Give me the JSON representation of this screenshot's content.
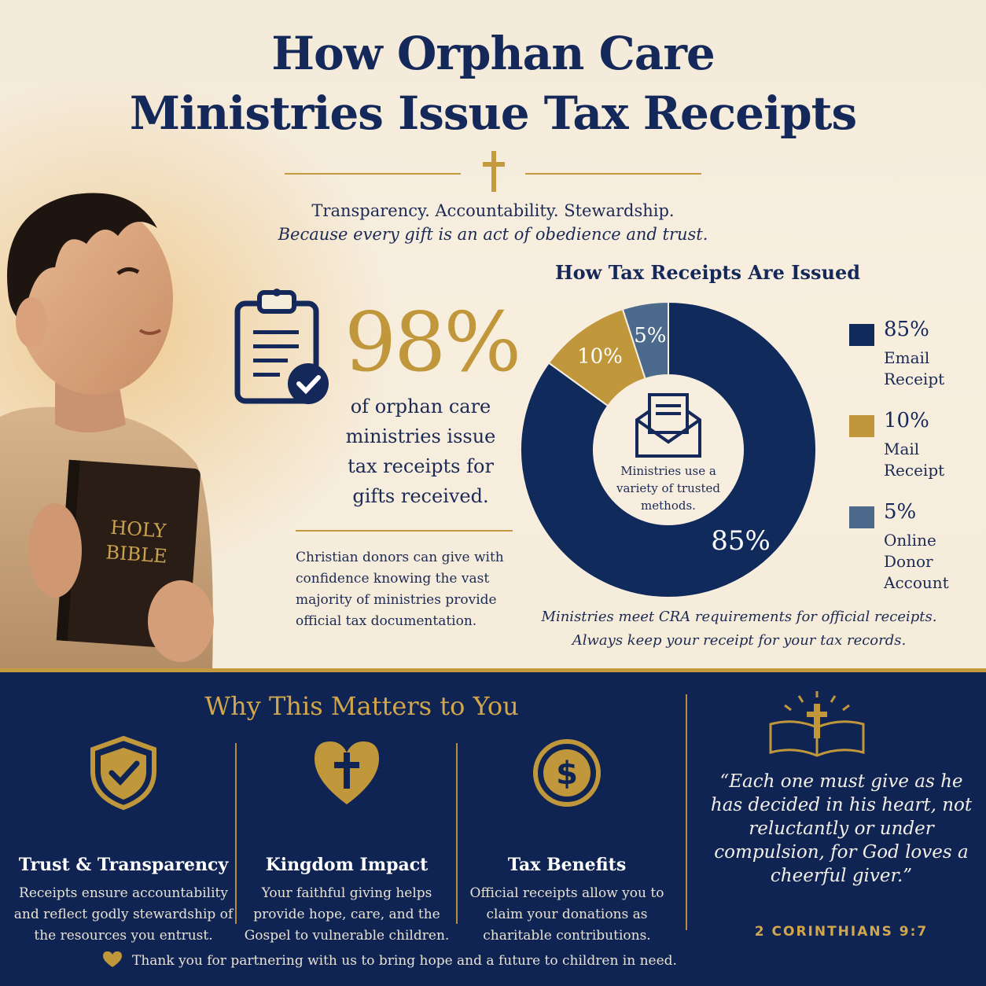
{
  "header": {
    "title_line1": "How Orphan Care",
    "title_line2": "Ministries Issue Tax Receipts",
    "tagline": "Transparency. Accountability. Stewardship.",
    "tagline_sub": "Because every gift is an act of obedience and trust."
  },
  "illustration": {
    "bible_label_line1": "HOLY",
    "bible_label_line2": "BIBLE"
  },
  "stat": {
    "value": "98%",
    "description": "of orphan care ministries issue tax receipts for gifts received.",
    "note": "Christian donors can give with confidence knowing the vast majority of ministries provide official tax documentation."
  },
  "chart_data": {
    "type": "pie",
    "title": "How Tax Receipts Are Issued",
    "center_text": "Ministries use a variety of trusted methods.",
    "slices": [
      {
        "label": "Email Receipt",
        "value": 85,
        "display": "85%",
        "color": "#102a5c"
      },
      {
        "label": "Mail Receipt",
        "value": 10,
        "display": "10%",
        "color": "#c1973c"
      },
      {
        "label": "Online Donor Account",
        "value": 5,
        "display": "5%",
        "color": "#4b6a8c"
      }
    ],
    "legend_placement": "right",
    "footnote_line1": "Ministries meet CRA requirements for official receipts.",
    "footnote_line2": "Always keep your receipt for your tax records."
  },
  "why": {
    "title": "Why This Matters to You",
    "items": [
      {
        "title": "Trust & Transparency",
        "text": "Receipts ensure accountability and reflect godly stewardship of the resources you entrust.",
        "icon": "shield-check-icon"
      },
      {
        "title": "Kingdom Impact",
        "text": "Your faithful giving helps provide hope, care, and the Gospel to vulnerable children.",
        "icon": "heart-cross-icon"
      },
      {
        "title": "Tax Benefits",
        "text": "Official receipts allow you to claim your donations as charitable contributions.",
        "icon": "dollar-coin-icon"
      }
    ]
  },
  "quote": {
    "text": "“Each one must give as he has decided in his heart, not reluctantly or under compulsion, for God loves a cheerful giver.”",
    "reference": "2 CORINTHIANS 9:7"
  },
  "footer": {
    "thanks": "Thank you for partnering with us to bring hope and a future to children in need."
  },
  "colors": {
    "navy": "#102a5c",
    "gold": "#c1973c",
    "slate": "#4b6a8c",
    "cream": "#f6ecda"
  }
}
